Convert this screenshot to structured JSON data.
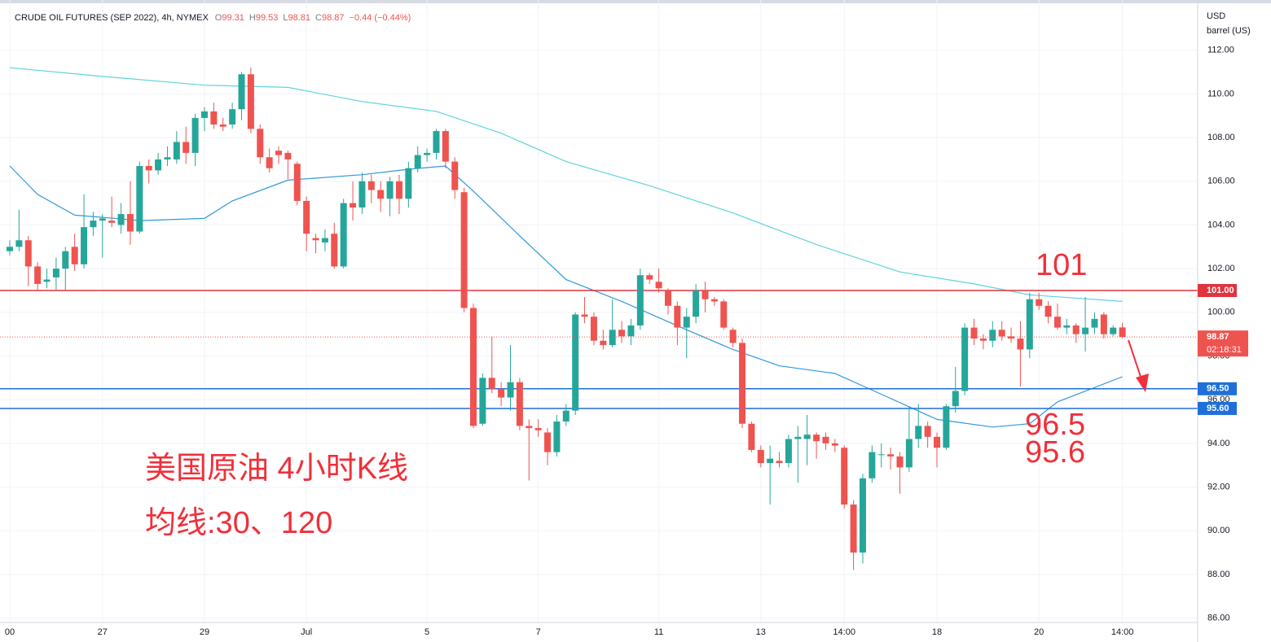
{
  "chart_data": {
    "type": "candlestick",
    "title": "CRUDE OIL FUTURES (SEP 2022), 4h, NYMEX",
    "ohlc_labels": [
      "O",
      "H",
      "L",
      "C"
    ],
    "change_label": "−0.44 (−0.44%)",
    "unit_label": [
      "USD",
      "barrel (US)"
    ],
    "categories": [
      "00",
      null,
      null,
      null,
      null,
      null,
      null,
      null,
      null,
      null,
      "27",
      null,
      null,
      null,
      null,
      null,
      null,
      null,
      null,
      null,
      null,
      "29",
      null,
      null,
      null,
      null,
      null,
      null,
      null,
      null,
      null,
      null,
      "Jul",
      null,
      null,
      null,
      null,
      null,
      null,
      null,
      null,
      null,
      null,
      null,
      null,
      "5",
      null,
      null,
      null,
      null,
      null,
      null,
      null,
      null,
      null,
      null,
      null,
      "7",
      null,
      null,
      null,
      null,
      null,
      null,
      null,
      null,
      null,
      null,
      null,
      null,
      "11",
      null,
      null,
      null,
      null,
      null,
      null,
      null,
      null,
      null,
      null,
      "13",
      null,
      null,
      null,
      null,
      null,
      null,
      null,
      null,
      "14:00",
      null,
      null,
      null,
      null,
      null,
      null,
      null,
      null,
      null,
      "18",
      null,
      null,
      null,
      null,
      null,
      null,
      null,
      null,
      null,
      null,
      "20",
      null,
      null,
      null,
      null,
      null,
      null,
      null,
      null,
      "14:00"
    ],
    "open": [
      102.8,
      103.0,
      103.3,
      102.1,
      101.4,
      101.6,
      102.0,
      103.0,
      102.2,
      103.9,
      104.2,
      104.2,
      104.0,
      104.5,
      103.7,
      106.7,
      106.5,
      107.0,
      107.0,
      107.8,
      107.3,
      108.9,
      109.2,
      108.6,
      108.6,
      109.3,
      110.9,
      108.4,
      107.1,
      107.4,
      107.3,
      106.8,
      105.1,
      103.4,
      103.2,
      103.6,
      102.1,
      105.0,
      104.8,
      106.0,
      105.6,
      105.2,
      106.0,
      105.2,
      106.6,
      107.2,
      107.3,
      108.3,
      106.9,
      105.5,
      100.2,
      94.9,
      97.0,
      96.5,
      96.1,
      96.8,
      94.8,
      94.7,
      94.5,
      93.6,
      95.0,
      95.5,
      99.9,
      99.8,
      98.7,
      98.5,
      99.2,
      98.9,
      99.4,
      101.7,
      101.4,
      101.0,
      100.3,
      99.3,
      99.8,
      101.0,
      100.6,
      100.5,
      99.2,
      98.6,
      94.9,
      93.7,
      93.1,
      93.2,
      93.1,
      94.2,
      94.2,
      94.4,
      94.3,
      94.0,
      93.8,
      91.2,
      89.0,
      92.4,
      93.5,
      93.5,
      93.4,
      92.9,
      94.2,
      94.8,
      94.3,
      93.8,
      95.7,
      96.4,
      99.3,
      98.8,
      98.7,
      99.2,
      98.9,
      98.8,
      98.3,
      100.6,
      100.3,
      99.8,
      99.3,
      99.4,
      99.0,
      99.3,
      99.9,
      99.0,
      99.31
    ],
    "high": [
      103.3,
      104.7,
      103.5,
      102.3,
      102.0,
      102.5,
      103.0,
      103.6,
      105.4,
      104.6,
      104.5,
      105.3,
      105.0,
      106.0,
      106.9,
      107.0,
      107.3,
      107.6,
      108.3,
      108.5,
      109.1,
      109.4,
      109.6,
      108.9,
      109.6,
      111.0,
      111.2,
      108.6,
      107.5,
      107.6,
      107.4,
      106.9,
      105.3,
      103.6,
      103.8,
      104.1,
      105.2,
      106.0,
      106.4,
      106.3,
      106.0,
      106.2,
      106.3,
      106.9,
      107.6,
      107.5,
      108.4,
      108.4,
      107.1,
      105.7,
      100.4,
      97.2,
      98.9,
      96.8,
      98.5,
      97.0,
      95.1,
      95.1,
      94.7,
      95.3,
      95.8,
      100.0,
      100.7,
      100.0,
      99.2,
      100.6,
      99.6,
      99.7,
      102.0,
      101.8,
      102.0,
      101.1,
      100.5,
      100.2,
      101.3,
      101.4,
      100.7,
      100.6,
      99.3,
      98.8,
      95.0,
      93.9,
      93.9,
      93.6,
      94.4,
      94.8,
      95.3,
      94.5,
      94.5,
      94.2,
      93.9,
      91.4,
      92.6,
      93.9,
      94.0,
      93.8,
      93.6,
      95.7,
      95.8,
      95.0,
      94.5,
      95.8,
      97.5,
      99.5,
      99.7,
      99.0,
      99.6,
      99.6,
      99.3,
      99.6,
      100.9,
      100.9,
      100.5,
      100.4,
      99.7,
      99.5,
      100.7,
      100.0,
      100.0,
      99.4,
      99.53
    ],
    "low": [
      102.6,
      102.8,
      101.2,
      101.0,
      101.1,
      101.0,
      101.0,
      101.9,
      102.0,
      103.5,
      102.5,
      103.9,
      103.6,
      103.1,
      103.6,
      105.9,
      106.3,
      106.7,
      106.8,
      106.8,
      106.7,
      108.3,
      108.4,
      108.3,
      108.4,
      108.8,
      108.2,
      106.8,
      106.4,
      106.8,
      106.1,
      104.9,
      102.8,
      102.7,
      102.8,
      102.0,
      102.0,
      104.2,
      104.5,
      105.0,
      104.6,
      104.4,
      104.5,
      104.8,
      106.4,
      106.9,
      107.0,
      106.6,
      105.2,
      100.0,
      94.7,
      94.8,
      96.3,
      95.7,
      95.5,
      94.6,
      92.3,
      94.3,
      93.0,
      93.4,
      94.8,
      95.3,
      99.5,
      98.5,
      98.3,
      98.4,
      98.6,
      98.5,
      99.2,
      101.3,
      100.9,
      99.9,
      98.5,
      97.9,
      99.5,
      100.0,
      100.3,
      99.2,
      98.4,
      94.7,
      93.6,
      92.9,
      91.2,
      92.9,
      92.9,
      92.2,
      93.0,
      93.3,
      93.7,
      93.6,
      91.0,
      88.2,
      88.5,
      92.2,
      92.9,
      92.8,
      91.7,
      92.7,
      93.8,
      93.8,
      92.9,
      93.7,
      95.4,
      96.2,
      98.5,
      98.3,
      98.4,
      98.7,
      98.6,
      96.6,
      97.9,
      100.1,
      99.5,
      99.2,
      99.0,
      98.6,
      98.2,
      99.0,
      98.8,
      98.9,
      98.81
    ],
    "close": [
      103.0,
      103.3,
      102.1,
      101.3,
      101.5,
      102.0,
      102.8,
      102.2,
      103.9,
      104.2,
      104.3,
      104.1,
      104.5,
      103.7,
      106.7,
      106.5,
      107.0,
      107.1,
      107.8,
      107.3,
      108.9,
      109.2,
      108.6,
      108.5,
      109.3,
      110.9,
      108.4,
      107.1,
      106.6,
      107.2,
      107.0,
      105.1,
      103.6,
      103.3,
      103.4,
      102.1,
      105.0,
      104.8,
      106.0,
      105.6,
      105.2,
      106.0,
      105.2,
      106.6,
      107.2,
      107.3,
      108.3,
      106.9,
      105.6,
      100.2,
      94.8,
      97.0,
      96.5,
      96.1,
      96.8,
      94.8,
      94.7,
      94.6,
      93.6,
      95.0,
      95.5,
      99.9,
      99.8,
      98.7,
      98.5,
      99.2,
      98.9,
      99.4,
      101.7,
      101.5,
      101.1,
      100.3,
      99.3,
      99.8,
      101.0,
      100.6,
      100.5,
      99.3,
      98.6,
      94.9,
      93.7,
      93.1,
      93.3,
      93.1,
      94.2,
      94.3,
      94.4,
      94.1,
      94.0,
      93.9,
      91.2,
      89.0,
      92.4,
      93.6,
      93.5,
      93.4,
      92.9,
      94.2,
      94.8,
      94.3,
      93.8,
      95.7,
      96.4,
      99.3,
      98.8,
      98.7,
      99.2,
      98.9,
      98.8,
      98.3,
      100.6,
      100.3,
      99.8,
      99.3,
      99.4,
      99.0,
      99.3,
      99.7,
      99.0,
      99.3,
      98.87
    ],
    "up_color": "#26a69a",
    "down_color": "#ef5350",
    "series": [
      {
        "color": "#5fd3dc",
        "x": [
          0,
          10,
          21,
          30,
          38,
          46,
          53,
          60,
          69,
          78,
          87,
          96,
          104,
          110,
          120
        ],
        "values": [
          111.2,
          110.8,
          110.4,
          110.3,
          109.65,
          109.2,
          108.2,
          106.9,
          105.8,
          104.55,
          103.1,
          101.85,
          101.3,
          100.8,
          100.5
        ]
      },
      {
        "color": "#3197dd",
        "x": [
          0,
          3,
          7,
          10,
          14,
          21,
          24,
          30,
          38,
          43,
          47,
          50,
          55,
          60,
          66,
          73,
          78,
          83,
          89,
          94,
          100,
          106,
          110,
          113,
          120
        ],
        "values": [
          106.7,
          105.4,
          104.45,
          104.35,
          104.2,
          104.3,
          105.1,
          106.05,
          106.3,
          106.55,
          106.7,
          105.55,
          103.5,
          101.5,
          100.5,
          99.2,
          98.3,
          97.55,
          97.2,
          96.25,
          95.1,
          94.75,
          94.9,
          95.9,
          97.05
        ]
      }
    ],
    "levels": [
      {
        "value": 101,
        "label": "101.00",
        "color": "#e0343f"
      },
      {
        "value": 96.5,
        "label": "96.50",
        "color": "#1e6fd9"
      },
      {
        "value": 95.6,
        "label": "95.60",
        "color": "#1e6fd9"
      }
    ],
    "last_price_color": "#ef5350",
    "last_price_countdown": "02:18:31",
    "ylim": [
      85.8,
      114.3
    ],
    "yticks": [
      {
        "value": 112,
        "label": "112.00"
      },
      {
        "value": 110,
        "label": "110.00"
      },
      {
        "value": 108,
        "label": "108.00"
      },
      {
        "value": 106,
        "label": "106.00"
      },
      {
        "value": 104,
        "label": "104.00"
      },
      {
        "value": 102,
        "label": "102.00"
      },
      {
        "value": 100,
        "label": "100.00"
      },
      {
        "value": 98,
        "label": "98.00"
      },
      {
        "value": 96,
        "label": "96.00"
      },
      {
        "value": 94,
        "label": "94.00"
      },
      {
        "value": 92,
        "label": "92.00"
      },
      {
        "value": 90,
        "label": "90.00"
      },
      {
        "value": 88,
        "label": "88.00"
      },
      {
        "value": 86,
        "label": "86.00"
      }
    ],
    "grid": true,
    "annotations": [
      "101",
      "96.5",
      "95.6",
      "美国原油 4小时K线",
      "均线:30、120"
    ]
  }
}
